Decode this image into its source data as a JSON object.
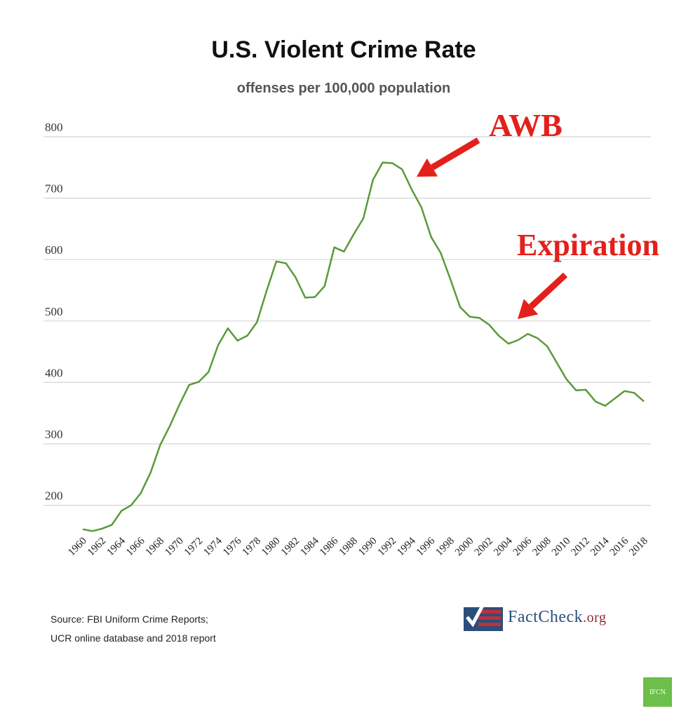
{
  "chart_data": {
    "type": "line",
    "title": "U.S. Violent Crime Rate",
    "subtitle": "offenses per 100,000 population",
    "xlabel": "",
    "ylabel": "",
    "ylim": [
      150,
      800
    ],
    "yticks": [
      200,
      300,
      400,
      500,
      600,
      700,
      800
    ],
    "xtick_labels": [
      "1960",
      "1962",
      "1964",
      "1966",
      "1968",
      "1970",
      "1972",
      "1974",
      "1976",
      "1978",
      "1980",
      "1982",
      "1984",
      "1986",
      "1988",
      "1990",
      "1992",
      "1994",
      "1996",
      "1998",
      "2000",
      "2002",
      "2004",
      "2006",
      "2008",
      "2010",
      "2012",
      "2014",
      "2016",
      "2018"
    ],
    "grid": "horizontal",
    "line_color": "#5a9a3a",
    "x": [
      1960,
      1961,
      1962,
      1963,
      1964,
      1965,
      1966,
      1967,
      1968,
      1969,
      1970,
      1971,
      1972,
      1973,
      1974,
      1975,
      1976,
      1977,
      1978,
      1979,
      1980,
      1981,
      1982,
      1983,
      1984,
      1985,
      1986,
      1987,
      1988,
      1989,
      1990,
      1991,
      1992,
      1993,
      1994,
      1995,
      1996,
      1997,
      1998,
      1999,
      2000,
      2001,
      2002,
      2003,
      2004,
      2005,
      2006,
      2007,
      2008,
      2009,
      2010,
      2011,
      2012,
      2013,
      2014,
      2015,
      2016,
      2017,
      2018
    ],
    "values": [
      161,
      158,
      162,
      168,
      191,
      200,
      220,
      253,
      298,
      329,
      364,
      396,
      401,
      417,
      461,
      488,
      468,
      476,
      498,
      549,
      597,
      594,
      571,
      538,
      539,
      557,
      620,
      613,
      641,
      667,
      730,
      758,
      757,
      747,
      714,
      685,
      637,
      611,
      568,
      523,
      507,
      505,
      494,
      476,
      463,
      469,
      479,
      472,
      459,
      432,
      405,
      387,
      388,
      369,
      362,
      374,
      386,
      383,
      369
    ],
    "annotations": [
      {
        "text": "AWB",
        "year": 1994,
        "color": "#e3201b"
      },
      {
        "text": "Expiration",
        "year": 2004,
        "color": "#e3201b"
      }
    ]
  },
  "source": [
    "Source: FBI Uniform Crime Reports;",
    "UCR online database and 2018 report"
  ],
  "logo": {
    "main": "FactCheck",
    "suffix": ".org"
  },
  "badge": "IFCN"
}
